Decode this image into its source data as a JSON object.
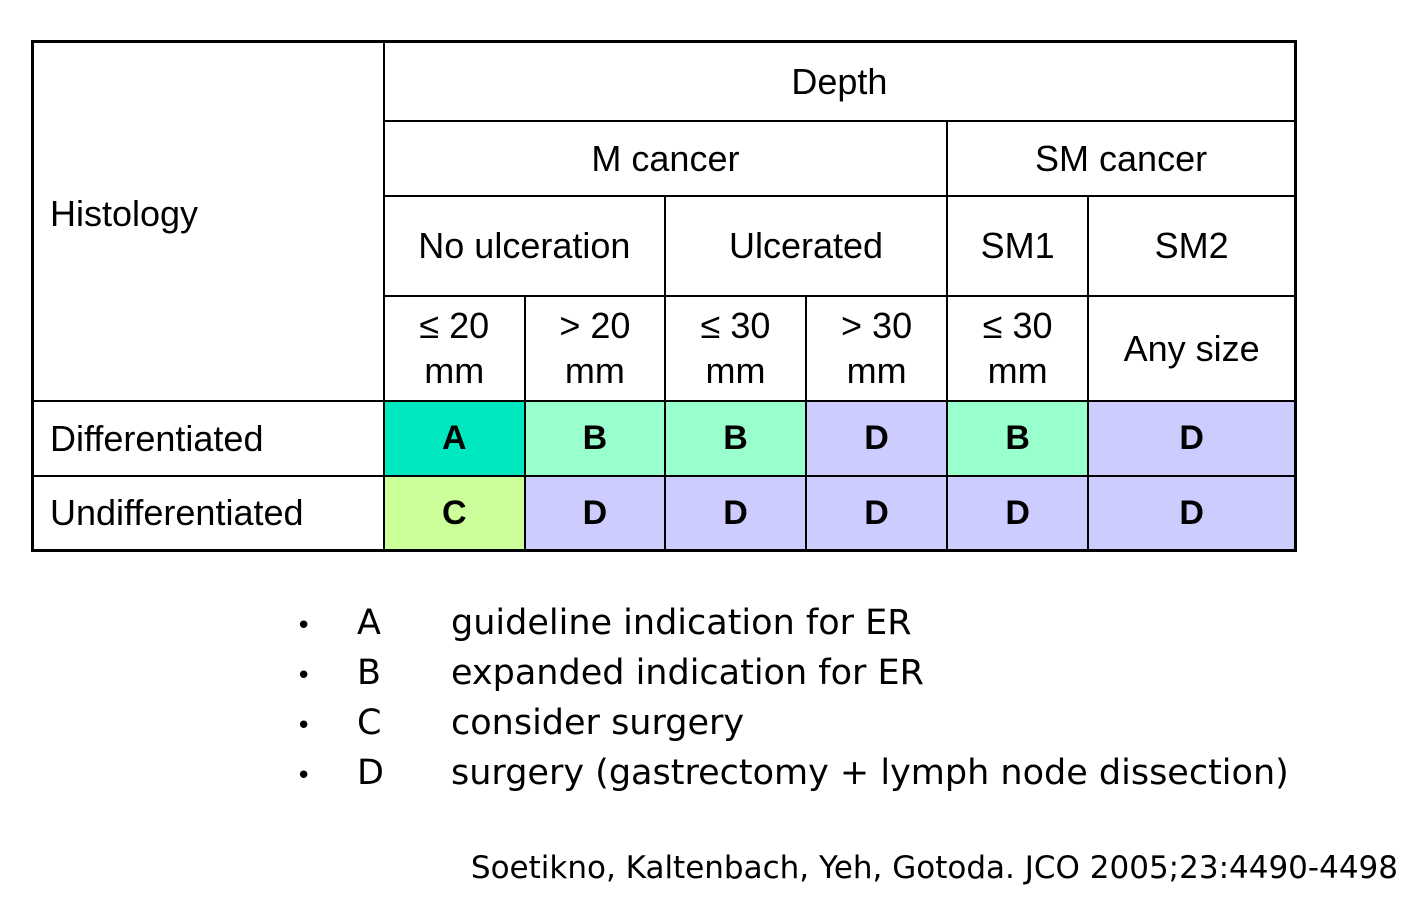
{
  "table": {
    "histology_label": "Histology",
    "depth_label": "Depth",
    "groups": [
      {
        "label": "M cancer"
      },
      {
        "label": "SM cancer"
      }
    ],
    "subgroups": [
      {
        "label": "No ulceration"
      },
      {
        "label": "Ulcerated"
      },
      {
        "label": "SM1"
      },
      {
        "label": "SM2"
      }
    ],
    "sizes": [
      {
        "line1": "≤ 20",
        "line2": "mm"
      },
      {
        "line1": "> 20",
        "line2": "mm"
      },
      {
        "line1": "≤ 30",
        "line2": "mm"
      },
      {
        "line1": "> 30",
        "line2": "mm"
      },
      {
        "line1": "≤ 30",
        "line2": "mm"
      },
      {
        "line1": "Any size",
        "line2": ""
      }
    ],
    "rows": [
      {
        "label": "Differentiated",
        "cells": [
          "A",
          "B",
          "B",
          "D",
          "B",
          "D"
        ]
      },
      {
        "label": "Undifferentiated",
        "cells": [
          "C",
          "D",
          "D",
          "D",
          "D",
          "D"
        ]
      }
    ]
  },
  "colors": {
    "A": "#00e8c0",
    "B": "#99ffcc",
    "C": "#ccff99",
    "D": "#ccccff"
  },
  "legend": [
    {
      "bullet": "•",
      "code": "A",
      "text": "guideline indication for ER"
    },
    {
      "bullet": "•",
      "code": "B",
      "text": "expanded indication for ER"
    },
    {
      "bullet": "•",
      "code": "C",
      "text": "consider surgery"
    },
    {
      "bullet": "•",
      "code": "D",
      "text": "surgery (gastrectomy + lymph node dissection)"
    }
  ],
  "citation": "Soetikno, Kaltenbach, Yeh, Gotoda. JCO 2005;23:4490-4498"
}
